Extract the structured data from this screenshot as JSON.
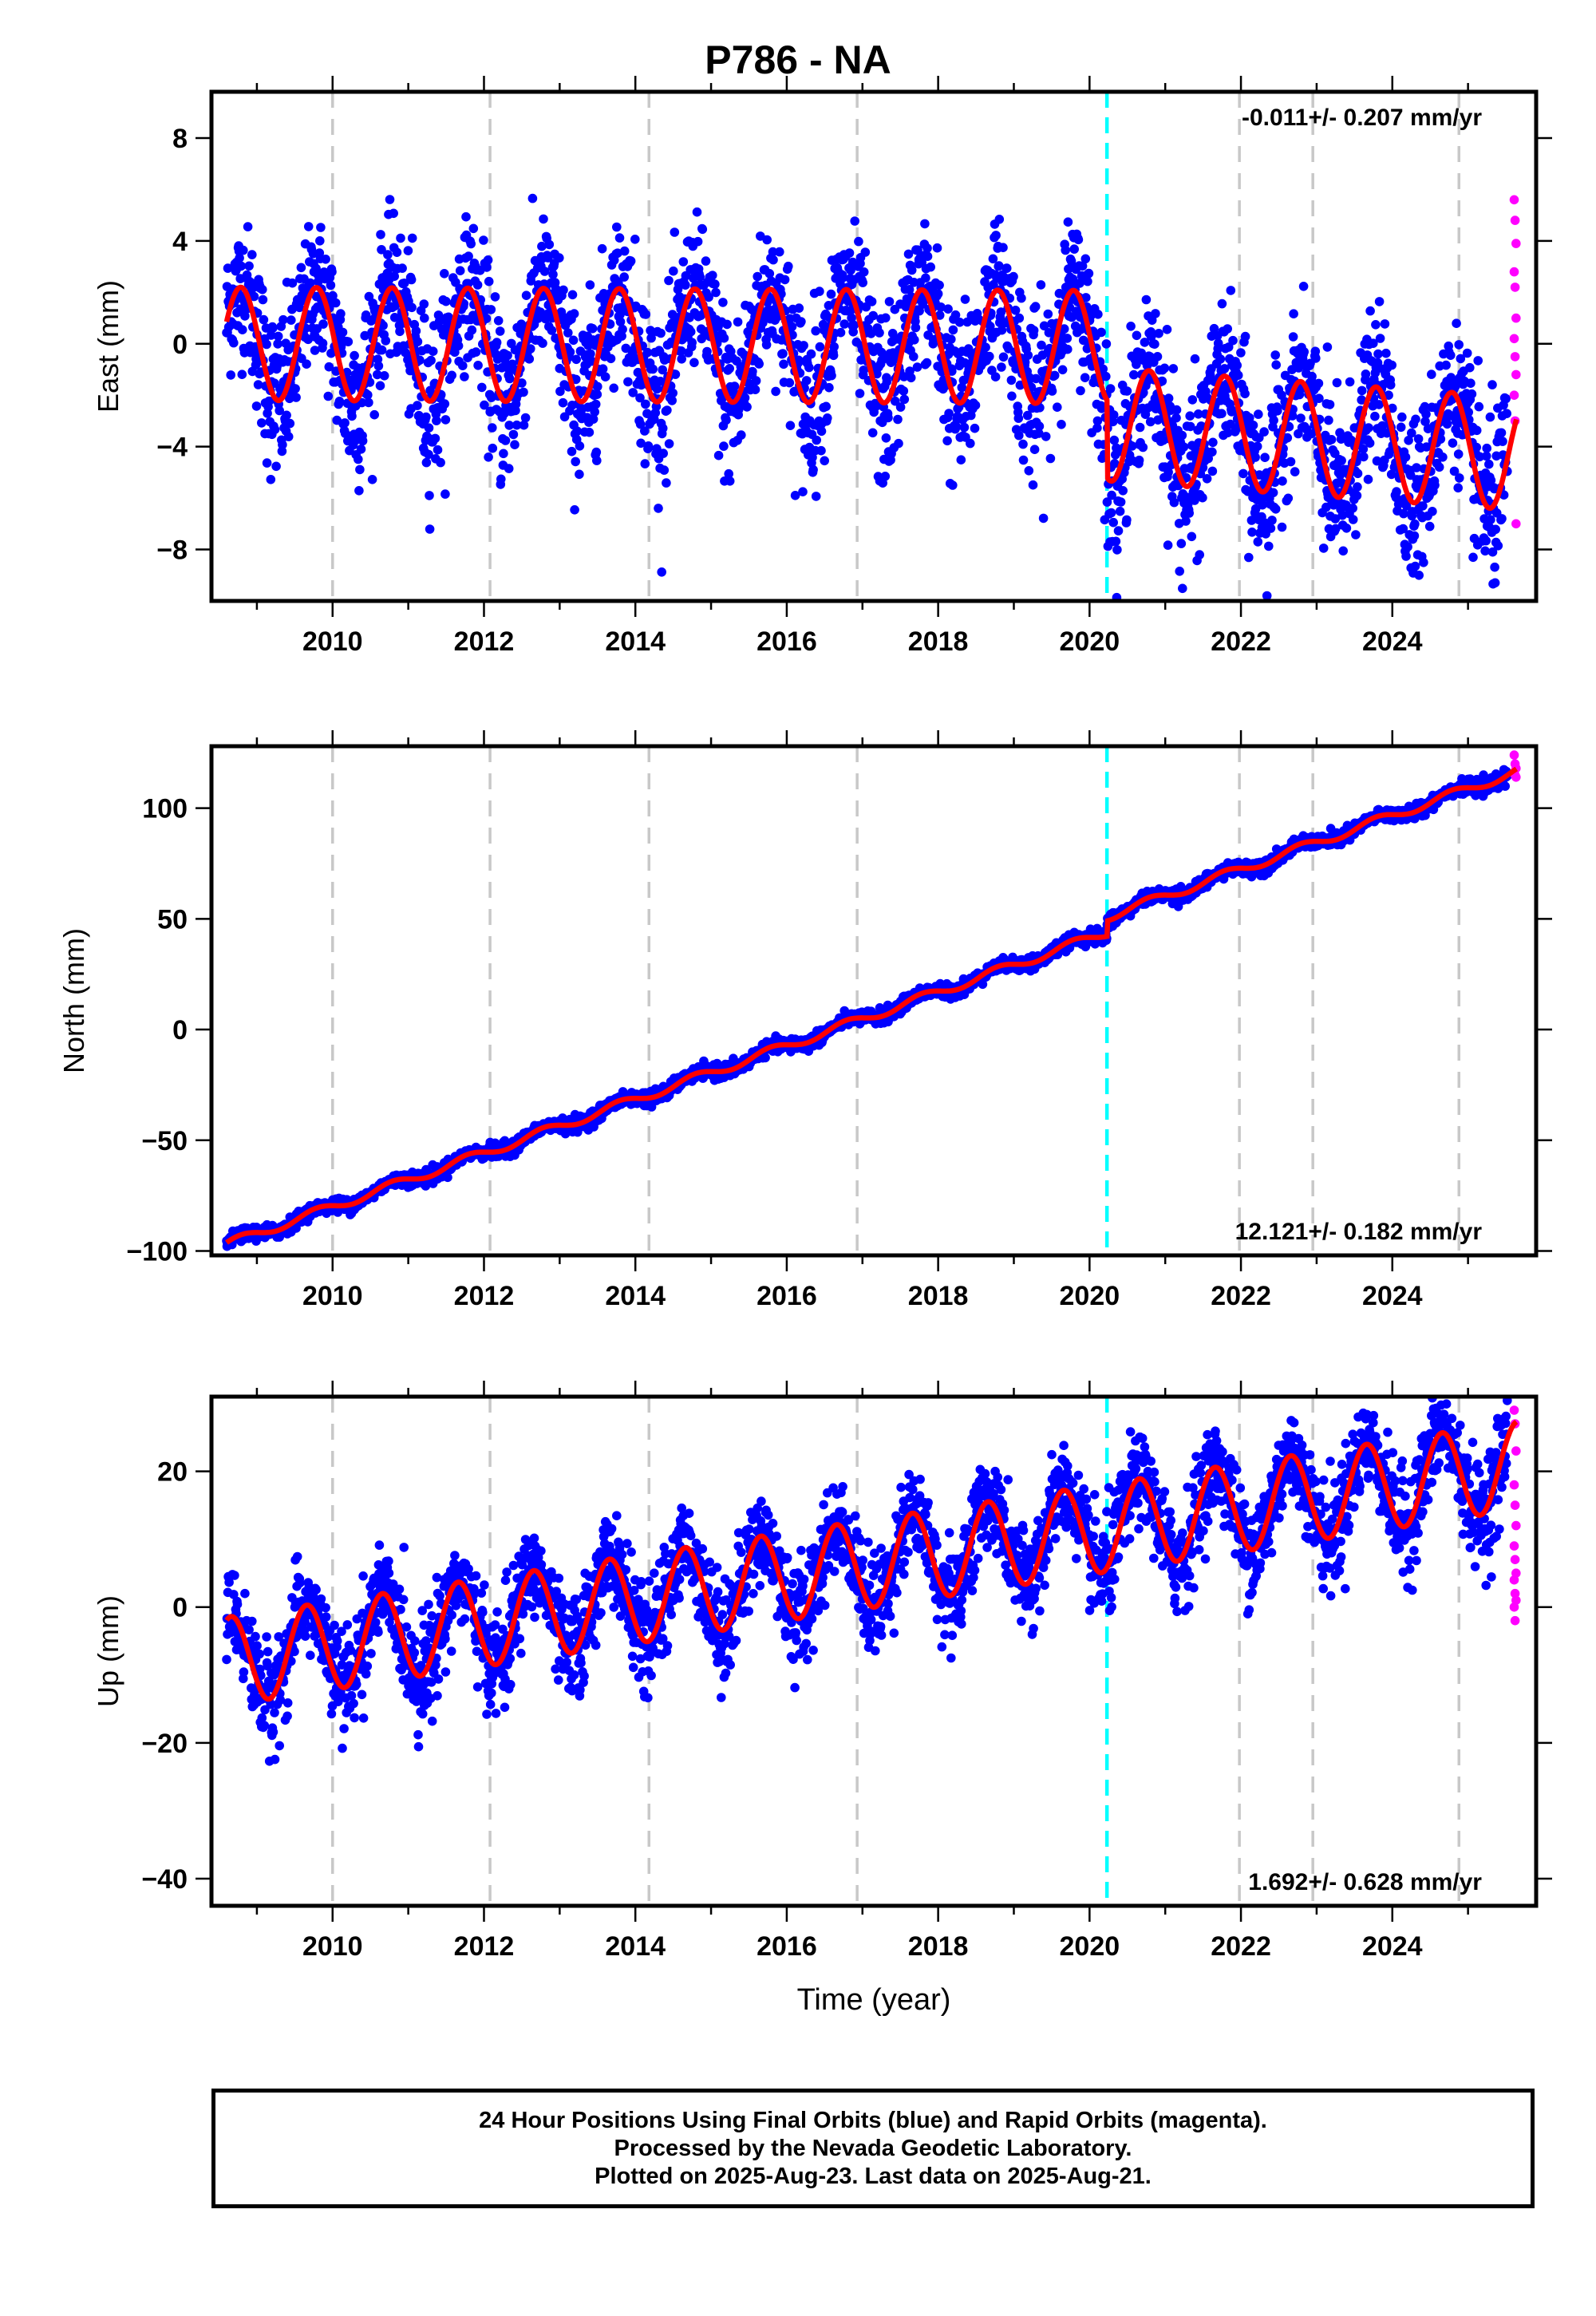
{
  "title": "P786 - NA",
  "colors": {
    "final": "#0000ff",
    "rapid": "#ff00ff",
    "model": "#ff0000",
    "event": "#00ffff",
    "grid": "#c8c8c8"
  },
  "chart_data": [
    {
      "type": "scatter",
      "ylabel": "East (mm)",
      "xlabel": "",
      "rate": "-0.011+/- 0.207 mm/yr",
      "rate_position": "top-right",
      "xlim": [
        2008.4,
        2025.9
      ],
      "ylim": [
        -10,
        9.8
      ],
      "xticks": [
        2010,
        2012,
        2014,
        2016,
        2018,
        2020,
        2022,
        2024
      ],
      "yticks": [
        -8,
        -4,
        0,
        4,
        8
      ],
      "trend_mm_per_yr": -0.011,
      "annual_amplitude_mm": 2.2,
      "scatter_mm": 1.5,
      "offset_2020_mm": -3.0,
      "event_lines": [
        2010.0,
        2012.08,
        2014.18,
        2016.93,
        2021.98,
        2022.95,
        2024.88
      ],
      "event_line_cyan": 2020.23,
      "data_start": 2008.6,
      "data_end": 2025.64,
      "rapid_values": [
        5.6,
        4.8,
        3.9,
        2.8,
        2.2,
        1.0,
        0.2,
        -0.5,
        -1.2,
        -2.0,
        -3.0,
        -7.0
      ]
    },
    {
      "type": "scatter",
      "ylabel": "North (mm)",
      "xlabel": "",
      "rate": "12.121+/- 0.182 mm/yr",
      "rate_position": "bottom-right",
      "xlim": [
        2008.4,
        2025.9
      ],
      "ylim": [
        -102,
        128
      ],
      "xticks": [
        2010,
        2012,
        2014,
        2016,
        2018,
        2020,
        2022,
        2024
      ],
      "yticks": [
        -100,
        -50,
        0,
        50,
        100
      ],
      "trend_mm_per_yr": 12.121,
      "annual_amplitude_mm": 2.0,
      "scatter_mm": 1.5,
      "offset_2020_mm": 7.0,
      "event_lines": [
        2010.0,
        2012.08,
        2014.18,
        2016.93,
        2021.98,
        2022.95,
        2024.88
      ],
      "event_line_cyan": 2020.23,
      "data_start": 2008.6,
      "data_end": 2025.64,
      "rapid_values": [
        124,
        120,
        118,
        116,
        115,
        114
      ]
    },
    {
      "type": "scatter",
      "ylabel": "Up (mm)",
      "xlabel": "Time (year)",
      "rate": "1.692+/- 0.628 mm/yr",
      "rate_position": "bottom-right",
      "xlim": [
        2008.4,
        2025.9
      ],
      "ylim": [
        -44,
        31
      ],
      "xticks": [
        2010,
        2012,
        2014,
        2016,
        2018,
        2020,
        2022,
        2024
      ],
      "yticks": [
        -40,
        -20,
        0,
        20
      ],
      "trend_mm_per_yr": 1.692,
      "annual_amplitude_mm": 6.5,
      "scatter_mm": 3.5,
      "offset_2020_mm": 0.0,
      "event_lines": [
        2010.0,
        2012.08,
        2014.18,
        2016.93,
        2021.98,
        2022.95,
        2024.88
      ],
      "event_line_cyan": 2020.23,
      "data_start": 2008.6,
      "data_end": 2025.64,
      "rapid_values": [
        29,
        27,
        23,
        18,
        15,
        12,
        9,
        7,
        5,
        4,
        2,
        1,
        0,
        -2
      ]
    }
  ],
  "footer": {
    "line1": "24 Hour Positions Using Final Orbits (blue) and Rapid Orbits (magenta).",
    "line2": "Processed by the Nevada Geodetic Laboratory.",
    "line3": "Plotted on 2025-Aug-23. Last data on 2025-Aug-21."
  }
}
